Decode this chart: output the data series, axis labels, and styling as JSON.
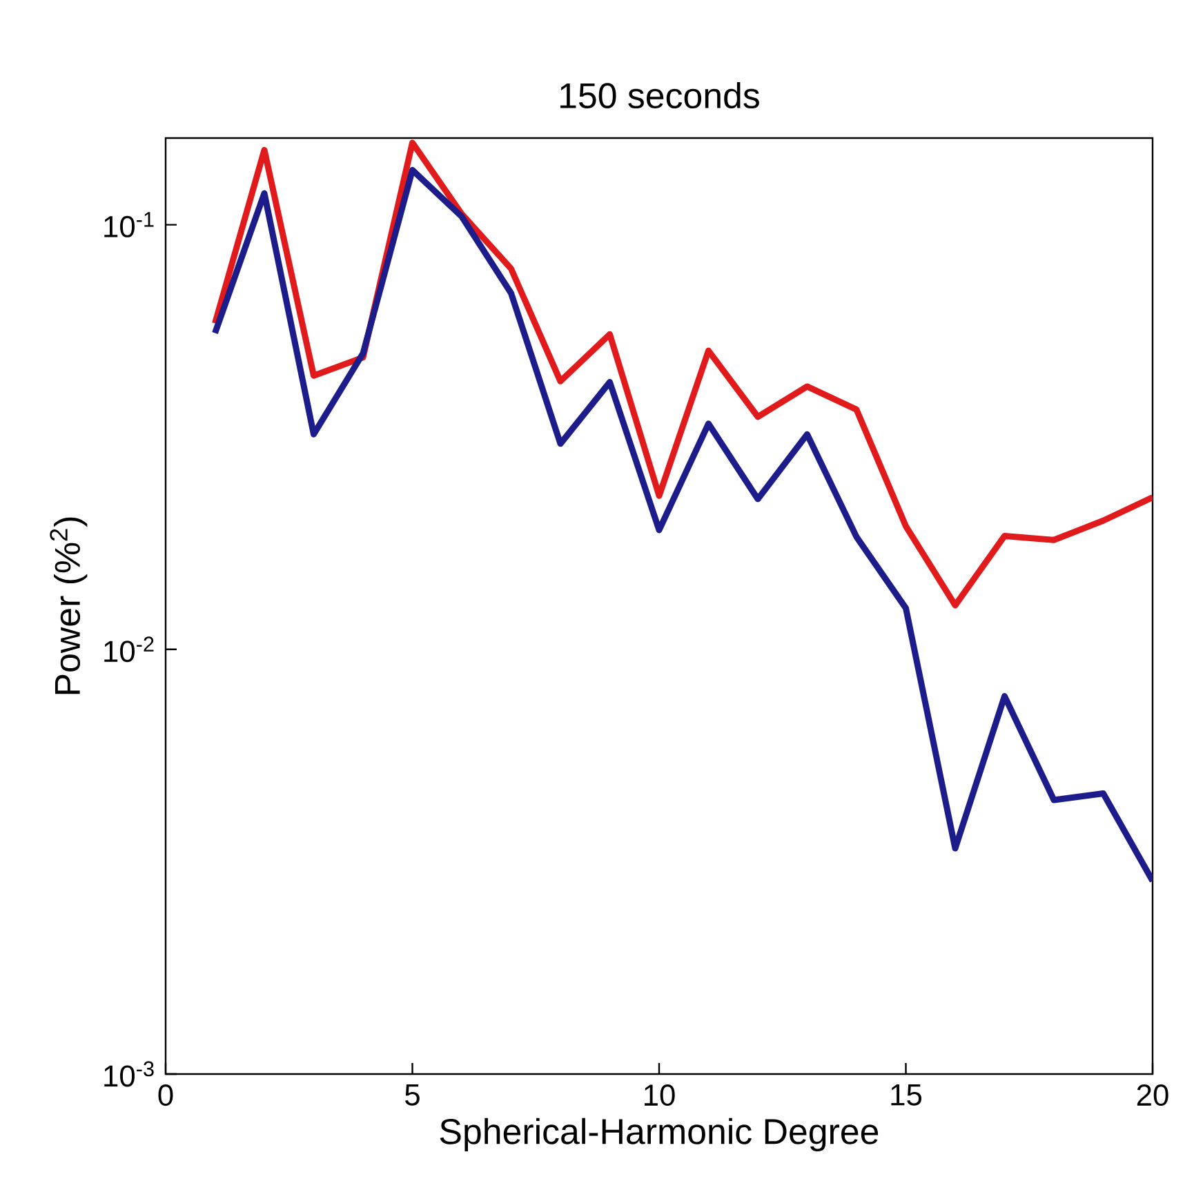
{
  "chart_data": {
    "type": "line",
    "title": "150 seconds",
    "xlabel": "Spherical-Harmonic Degree",
    "ylabel": "Power (%$^{2}$)",
    "x": [
      1,
      2,
      3,
      4,
      5,
      6,
      7,
      8,
      9,
      10,
      11,
      12,
      13,
      14,
      15,
      16,
      17,
      18,
      19,
      20
    ],
    "series": [
      {
        "color": "#e11b1b",
        "values": [
          0.0586,
          0.15,
          0.0441,
          0.0487,
          0.156,
          0.106,
          0.0788,
          0.0428,
          0.0552,
          0.023,
          0.0505,
          0.0353,
          0.0416,
          0.0367,
          0.0195,
          0.0127,
          0.0185,
          0.0181,
          0.0201,
          0.0228
        ]
      },
      {
        "color": "#1c1c8a",
        "values": [
          0.0556,
          0.1186,
          0.0321,
          0.0498,
          0.1345,
          0.1045,
          0.069,
          0.0305,
          0.0426,
          0.0191,
          0.034,
          0.0226,
          0.0321,
          0.0184,
          0.0125,
          0.0034,
          0.00776,
          0.00442,
          0.00458,
          0.00285
        ]
      }
    ],
    "log": "y",
    "xlim": [
      0,
      20
    ],
    "ylim": [
      0.001,
      0.16
    ],
    "xticks": [
      0,
      5,
      10,
      15,
      20
    ],
    "yticks": [
      {
        "value": 0.001,
        "label": "10$^{-3}$"
      },
      {
        "value": 0.01,
        "label": "10$^{-2}$"
      },
      {
        "value": 0.1,
        "label": "10$^{-1}$"
      }
    ],
    "grid": false,
    "marker": "none",
    "line_style": "solid"
  }
}
